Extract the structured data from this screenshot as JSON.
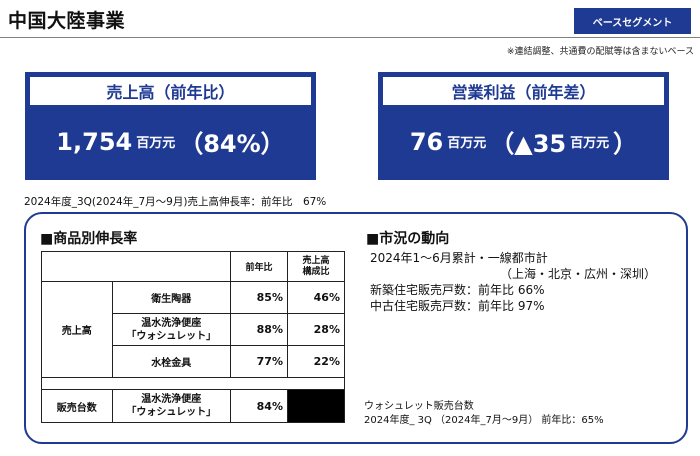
{
  "header": {
    "title": "中国大陸事業",
    "badge": "ベースセグメント",
    "footnote": "※連結調整、共通費の配賦等は含まないベース"
  },
  "kpis": [
    {
      "label": "売上高（前年比）",
      "value": "1,754",
      "unit": "百万元",
      "change": "（84%）"
    },
    {
      "label": "営業利益（前年差）",
      "value": "76",
      "unit": "百万元",
      "change": "（▲35",
      "change_unit": "百万元",
      "close": "）"
    }
  ],
  "sales_growth_note": "2024年度_3Q(2024年_7月～9月)売上高伸長率：前年比　67%",
  "product_growth": {
    "heading": "■商品別伸長率",
    "col_yoy": "前年比",
    "col_ratio": "売上高\n構成比",
    "group_sales": "売上高",
    "rows": [
      {
        "name": "衛生陶器",
        "yoy": "85%",
        "ratio": "46%"
      },
      {
        "name": "温水洗浄便座\n「ウォシュレット」",
        "yoy": "88%",
        "ratio": "28%"
      },
      {
        "name": "水栓金具",
        "yoy": "77%",
        "ratio": "22%"
      }
    ],
    "group_units": "販売台数",
    "units_row": {
      "name": "温水洗浄便座\n「ウォシュレット」",
      "yoy": "84%"
    }
  },
  "market": {
    "heading": "■市況の動向",
    "line1": "2024年1～6月累計・一線都市計",
    "line2": "（上海・北京・広州・深圳）",
    "line3": "新築住宅販売戸数：前年比 66%",
    "line4": "中古住宅販売戸数：前年比 97%"
  },
  "washlet_note": {
    "line1": "ウォシュレット販売台数",
    "line2": "2024年度_ 3Q （2024年_7月～9月）  前年比：65%"
  },
  "colors": {
    "brand_blue": "#1f3a93"
  }
}
